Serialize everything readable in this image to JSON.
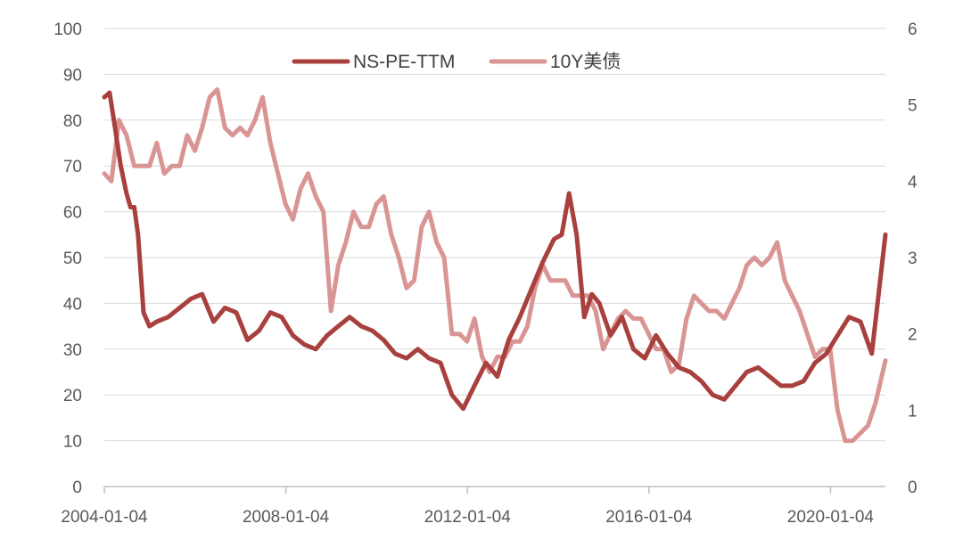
{
  "chart_data": {
    "type": "line",
    "title": "",
    "xlabel": "",
    "ylabel": "",
    "x_tick_labels": [
      "2004-01-04",
      "2008-01-04",
      "2012-01-04",
      "2016-01-04",
      "2020-01-04"
    ],
    "x_range": [
      "2004-01-04",
      "2021-03-21"
    ],
    "y_left": {
      "min": 0,
      "max": 100,
      "ticks": [
        "0",
        "10",
        "20",
        "30",
        "40",
        "50",
        "60",
        "70",
        "80",
        "90",
        "100"
      ]
    },
    "y_right": {
      "min": 0,
      "max": 6,
      "ticks": [
        "0",
        "1",
        "2",
        "3",
        "4",
        "5",
        "6"
      ]
    },
    "grid": "horizontal",
    "legend_position": "top-center",
    "series": [
      {
        "name": "NS-PE-TTM",
        "axis": "left",
        "color": "#a8403e",
        "points": [
          [
            "2004-01-04",
            85
          ],
          [
            "2004-02-15",
            86
          ],
          [
            "2004-04-01",
            78
          ],
          [
            "2004-05-15",
            70
          ],
          [
            "2004-07-01",
            64
          ],
          [
            "2004-08-01",
            61
          ],
          [
            "2004-09-01",
            61
          ],
          [
            "2004-10-01",
            55
          ],
          [
            "2004-11-15",
            38
          ],
          [
            "2005-01-01",
            35
          ],
          [
            "2005-03-01",
            36
          ],
          [
            "2005-06-01",
            37
          ],
          [
            "2005-09-01",
            39
          ],
          [
            "2005-12-01",
            41
          ],
          [
            "2006-03-01",
            42
          ],
          [
            "2006-06-01",
            36
          ],
          [
            "2006-09-01",
            39
          ],
          [
            "2006-12-01",
            38
          ],
          [
            "2007-03-01",
            32
          ],
          [
            "2007-06-01",
            34
          ],
          [
            "2007-09-01",
            38
          ],
          [
            "2007-12-01",
            37
          ],
          [
            "2008-03-01",
            33
          ],
          [
            "2008-06-01",
            31
          ],
          [
            "2008-09-01",
            30
          ],
          [
            "2008-12-01",
            33
          ],
          [
            "2009-03-01",
            35
          ],
          [
            "2009-06-01",
            37
          ],
          [
            "2009-09-01",
            35
          ],
          [
            "2009-12-01",
            34
          ],
          [
            "2010-03-01",
            32
          ],
          [
            "2010-06-01",
            29
          ],
          [
            "2010-09-01",
            28
          ],
          [
            "2010-12-01",
            30
          ],
          [
            "2011-03-01",
            28
          ],
          [
            "2011-06-01",
            27
          ],
          [
            "2011-09-01",
            20
          ],
          [
            "2011-12-01",
            17
          ],
          [
            "2012-03-01",
            22
          ],
          [
            "2012-06-01",
            27
          ],
          [
            "2012-09-01",
            24
          ],
          [
            "2012-12-01",
            32
          ],
          [
            "2013-03-01",
            37
          ],
          [
            "2013-06-01",
            43
          ],
          [
            "2013-09-01",
            49
          ],
          [
            "2013-12-01",
            54
          ],
          [
            "2014-02-01",
            55
          ],
          [
            "2014-04-01",
            64
          ],
          [
            "2014-06-01",
            55
          ],
          [
            "2014-08-01",
            37
          ],
          [
            "2014-10-01",
            42
          ],
          [
            "2014-12-01",
            40
          ],
          [
            "2015-03-01",
            33
          ],
          [
            "2015-06-01",
            37
          ],
          [
            "2015-09-01",
            30
          ],
          [
            "2015-12-01",
            28
          ],
          [
            "2016-03-01",
            33
          ],
          [
            "2016-06-01",
            29
          ],
          [
            "2016-09-01",
            26
          ],
          [
            "2016-12-01",
            25
          ],
          [
            "2017-03-01",
            23
          ],
          [
            "2017-06-01",
            20
          ],
          [
            "2017-09-01",
            19
          ],
          [
            "2017-12-01",
            22
          ],
          [
            "2018-03-01",
            25
          ],
          [
            "2018-06-01",
            26
          ],
          [
            "2018-09-01",
            24
          ],
          [
            "2018-12-01",
            22
          ],
          [
            "2019-03-01",
            22
          ],
          [
            "2019-06-01",
            23
          ],
          [
            "2019-09-01",
            27
          ],
          [
            "2019-12-01",
            29
          ],
          [
            "2020-03-01",
            33
          ],
          [
            "2020-06-01",
            37
          ],
          [
            "2020-09-01",
            36
          ],
          [
            "2020-12-01",
            29
          ],
          [
            "2021-03-21",
            55
          ]
        ]
      },
      {
        "name": "10Y美债",
        "axis": "right",
        "color": "#d99594",
        "points": [
          [
            "2004-01-04",
            4.1
          ],
          [
            "2004-03-01",
            4.0
          ],
          [
            "2004-05-01",
            4.8
          ],
          [
            "2004-07-01",
            4.6
          ],
          [
            "2004-09-01",
            4.2
          ],
          [
            "2004-11-01",
            4.2
          ],
          [
            "2005-01-01",
            4.2
          ],
          [
            "2005-03-01",
            4.5
          ],
          [
            "2005-05-01",
            4.1
          ],
          [
            "2005-07-01",
            4.2
          ],
          [
            "2005-09-01",
            4.2
          ],
          [
            "2005-11-01",
            4.6
          ],
          [
            "2006-01-01",
            4.4
          ],
          [
            "2006-03-01",
            4.7
          ],
          [
            "2006-05-01",
            5.1
          ],
          [
            "2006-07-01",
            5.2
          ],
          [
            "2006-09-01",
            4.7
          ],
          [
            "2006-11-01",
            4.6
          ],
          [
            "2007-01-01",
            4.7
          ],
          [
            "2007-03-01",
            4.6
          ],
          [
            "2007-05-01",
            4.8
          ],
          [
            "2007-07-01",
            5.1
          ],
          [
            "2007-09-01",
            4.5
          ],
          [
            "2007-11-01",
            4.1
          ],
          [
            "2008-01-01",
            3.7
          ],
          [
            "2008-03-01",
            3.5
          ],
          [
            "2008-05-01",
            3.9
          ],
          [
            "2008-07-01",
            4.1
          ],
          [
            "2008-09-01",
            3.8
          ],
          [
            "2008-11-01",
            3.6
          ],
          [
            "2009-01-01",
            2.3
          ],
          [
            "2009-03-01",
            2.9
          ],
          [
            "2009-05-01",
            3.2
          ],
          [
            "2009-07-01",
            3.6
          ],
          [
            "2009-09-01",
            3.4
          ],
          [
            "2009-11-01",
            3.4
          ],
          [
            "2010-01-01",
            3.7
          ],
          [
            "2010-03-01",
            3.8
          ],
          [
            "2010-05-01",
            3.3
          ],
          [
            "2010-07-01",
            3.0
          ],
          [
            "2010-09-01",
            2.6
          ],
          [
            "2010-11-01",
            2.7
          ],
          [
            "2011-01-01",
            3.4
          ],
          [
            "2011-03-01",
            3.6
          ],
          [
            "2011-05-01",
            3.2
          ],
          [
            "2011-07-01",
            3.0
          ],
          [
            "2011-09-01",
            2.0
          ],
          [
            "2011-11-01",
            2.0
          ],
          [
            "2012-01-01",
            1.9
          ],
          [
            "2012-03-01",
            2.2
          ],
          [
            "2012-05-01",
            1.7
          ],
          [
            "2012-07-01",
            1.5
          ],
          [
            "2012-09-01",
            1.7
          ],
          [
            "2012-11-01",
            1.7
          ],
          [
            "2013-01-01",
            1.9
          ],
          [
            "2013-03-01",
            1.9
          ],
          [
            "2013-05-01",
            2.1
          ],
          [
            "2013-07-01",
            2.6
          ],
          [
            "2013-09-01",
            2.9
          ],
          [
            "2013-11-01",
            2.7
          ],
          [
            "2014-01-01",
            2.7
          ],
          [
            "2014-03-01",
            2.7
          ],
          [
            "2014-05-01",
            2.5
          ],
          [
            "2014-07-01",
            2.5
          ],
          [
            "2014-09-01",
            2.5
          ],
          [
            "2014-11-01",
            2.3
          ],
          [
            "2015-01-01",
            1.8
          ],
          [
            "2015-03-01",
            2.0
          ],
          [
            "2015-05-01",
            2.2
          ],
          [
            "2015-07-01",
            2.3
          ],
          [
            "2015-09-01",
            2.2
          ],
          [
            "2015-11-01",
            2.2
          ],
          [
            "2016-01-01",
            2.0
          ],
          [
            "2016-03-01",
            1.8
          ],
          [
            "2016-05-01",
            1.8
          ],
          [
            "2016-07-01",
            1.5
          ],
          [
            "2016-09-01",
            1.6
          ],
          [
            "2016-11-01",
            2.2
          ],
          [
            "2017-01-01",
            2.5
          ],
          [
            "2017-03-01",
            2.4
          ],
          [
            "2017-05-01",
            2.3
          ],
          [
            "2017-07-01",
            2.3
          ],
          [
            "2017-09-01",
            2.2
          ],
          [
            "2017-11-01",
            2.4
          ],
          [
            "2018-01-01",
            2.6
          ],
          [
            "2018-03-01",
            2.9
          ],
          [
            "2018-05-01",
            3.0
          ],
          [
            "2018-07-01",
            2.9
          ],
          [
            "2018-09-01",
            3.0
          ],
          [
            "2018-11-01",
            3.2
          ],
          [
            "2019-01-01",
            2.7
          ],
          [
            "2019-03-01",
            2.5
          ],
          [
            "2019-05-01",
            2.3
          ],
          [
            "2019-07-01",
            2.0
          ],
          [
            "2019-09-01",
            1.7
          ],
          [
            "2019-11-01",
            1.8
          ],
          [
            "2020-01-01",
            1.8
          ],
          [
            "2020-03-01",
            1.0
          ],
          [
            "2020-05-01",
            0.6
          ],
          [
            "2020-07-01",
            0.6
          ],
          [
            "2020-09-01",
            0.7
          ],
          [
            "2020-11-01",
            0.8
          ],
          [
            "2021-01-01",
            1.1
          ],
          [
            "2021-03-21",
            1.65
          ]
        ]
      }
    ]
  }
}
